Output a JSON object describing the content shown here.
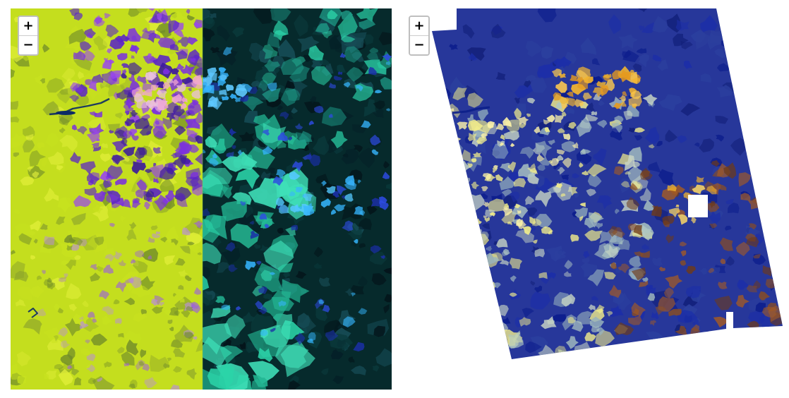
{
  "maps": [
    {
      "id": "left",
      "zoom_in_label": "+",
      "zoom_out_label": "−",
      "layers": [
        {
          "name": "false-color-yellow-green",
          "color": "#c4de1e"
        },
        {
          "name": "false-color-dark-teal",
          "color": "#062a2c"
        }
      ]
    },
    {
      "id": "right",
      "zoom_in_label": "+",
      "zoom_out_label": "−",
      "layers": [
        {
          "name": "classified-blue-yellow",
          "color": "#27379a"
        }
      ]
    }
  ],
  "palette": {
    "yellow_green": "#c8e21f",
    "olive": "#6f8a2a",
    "purple": "#7a2fe0",
    "pink": "#f2a6d4",
    "teal": "#2bd3a8",
    "dark": "#04141a",
    "sky_blue": "#36b6ff",
    "navy": "#0b1c8c",
    "pale_blue": "#aec7c2",
    "golden": "#f3b52e",
    "brown": "#8a4d22",
    "light_yellow": "#f5f08a"
  }
}
